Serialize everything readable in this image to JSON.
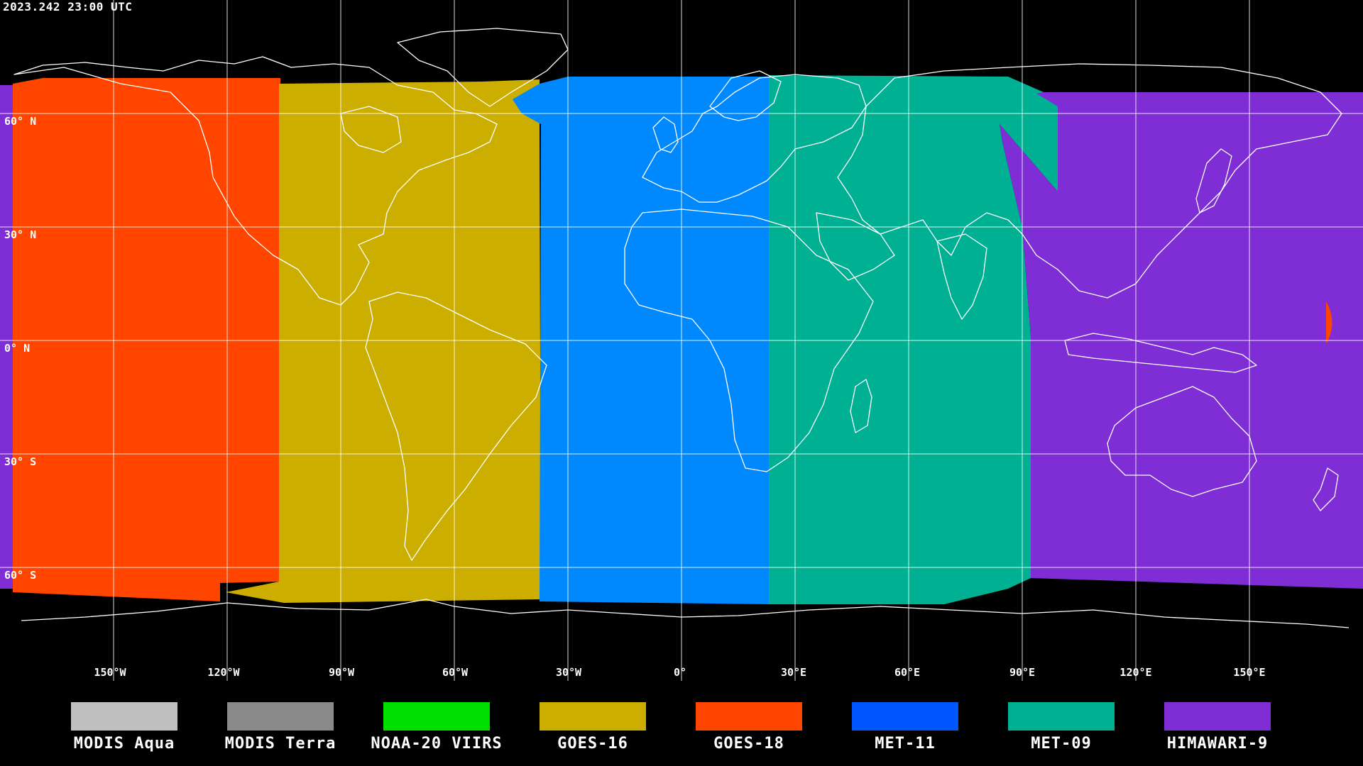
{
  "timestamp": "2023.242 23:00 UTC",
  "latitude_labels": [
    "60° N",
    "30° N",
    "0° N",
    "30° S",
    "60° S"
  ],
  "longitude_labels": [
    "150°W",
    "120°W",
    "90°W",
    "60°W",
    "30°W",
    "0°",
    "30°E",
    "60°E",
    "90°E",
    "120°E",
    "150°E"
  ],
  "legend": [
    {
      "label": "MODIS Aqua",
      "color": "#c0c0c0"
    },
    {
      "label": "MODIS Terra",
      "color": "#8a8a8a"
    },
    {
      "label": "NOAA-20 VIIRS",
      "color": "#00e000"
    },
    {
      "label": "GOES-16",
      "color": "#ccae00"
    },
    {
      "label": "GOES-18",
      "color": "#ff4500"
    },
    {
      "label": "MET-11",
      "color": "#0055ff"
    },
    {
      "label": "MET-09",
      "color": "#00b092"
    },
    {
      "label": "HIMAWARI-9",
      "color": "#7e2ed4"
    }
  ],
  "coverage_colors": {
    "goes18": "#ff4500",
    "goes16": "#ccae00",
    "met11_region": "#0088ff",
    "met09": "#00b092",
    "himawari9": "#7e2ed4"
  }
}
